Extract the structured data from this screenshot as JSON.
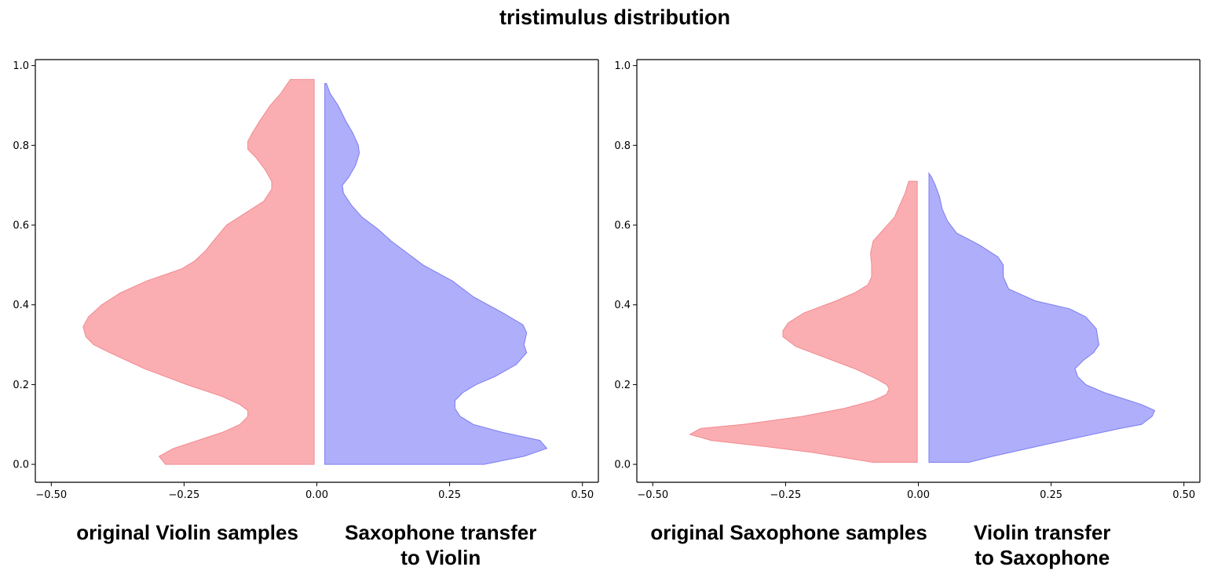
{
  "title": "tristimulus distribution",
  "colors": {
    "left_fill": "#fa8c90",
    "left_edge": "#f08a90",
    "right_fill": "#8c8cfa",
    "right_edge": "#7c7cf0",
    "fill_opacity": 0.7
  },
  "chart_data": [
    {
      "type": "violin",
      "xlim": [
        -0.53,
        0.53
      ],
      "ylim": [
        -0.045,
        1.015
      ],
      "xticks": [
        "−0.50",
        "−0.25",
        "0.00",
        "0.25",
        "0.50"
      ],
      "xtick_values": [
        -0.5,
        -0.25,
        0,
        0.25,
        0.5
      ],
      "yticks": [
        "0.0",
        "0.2",
        "0.4",
        "0.6",
        "0.8",
        "1.0"
      ],
      "ytick_values": [
        0,
        0.2,
        0.4,
        0.6,
        0.8,
        1.0
      ],
      "group_labels": [
        "original Violin samples",
        "Saxophone transfer\nto Violin"
      ],
      "series": [
        {
          "side": "left",
          "x_edge": -0.005,
          "profile": [
            [
              0.0,
              -0.285
            ],
            [
              0.02,
              -0.297
            ],
            [
              0.04,
              -0.27
            ],
            [
              0.08,
              -0.178
            ],
            [
              0.1,
              -0.145
            ],
            [
              0.12,
              -0.13
            ],
            [
              0.135,
              -0.13
            ],
            [
              0.15,
              -0.145
            ],
            [
              0.17,
              -0.178
            ],
            [
              0.2,
              -0.245
            ],
            [
              0.24,
              -0.325
            ],
            [
              0.28,
              -0.39
            ],
            [
              0.3,
              -0.42
            ],
            [
              0.32,
              -0.435
            ],
            [
              0.345,
              -0.44
            ],
            [
              0.37,
              -0.43
            ],
            [
              0.4,
              -0.405
            ],
            [
              0.43,
              -0.37
            ],
            [
              0.46,
              -0.32
            ],
            [
              0.49,
              -0.255
            ],
            [
              0.51,
              -0.23
            ],
            [
              0.535,
              -0.21
            ],
            [
              0.56,
              -0.195
            ],
            [
              0.6,
              -0.17
            ],
            [
              0.63,
              -0.135
            ],
            [
              0.66,
              -0.1
            ],
            [
              0.69,
              -0.085
            ],
            [
              0.71,
              -0.085
            ],
            [
              0.74,
              -0.098
            ],
            [
              0.77,
              -0.115
            ],
            [
              0.79,
              -0.13
            ],
            [
              0.81,
              -0.13
            ],
            [
              0.83,
              -0.122
            ],
            [
              0.86,
              -0.108
            ],
            [
              0.9,
              -0.088
            ],
            [
              0.93,
              -0.068
            ],
            [
              0.965,
              -0.05
            ]
          ]
        },
        {
          "side": "right",
          "x_edge": 0.015,
          "profile": [
            [
              0.0,
              0.315
            ],
            [
              0.02,
              0.39
            ],
            [
              0.04,
              0.433
            ],
            [
              0.06,
              0.42
            ],
            [
              0.08,
              0.35
            ],
            [
              0.1,
              0.295
            ],
            [
              0.12,
              0.27
            ],
            [
              0.14,
              0.26
            ],
            [
              0.16,
              0.26
            ],
            [
              0.18,
              0.275
            ],
            [
              0.2,
              0.3
            ],
            [
              0.22,
              0.335
            ],
            [
              0.25,
              0.375
            ],
            [
              0.28,
              0.395
            ],
            [
              0.3,
              0.39
            ],
            [
              0.33,
              0.395
            ],
            [
              0.35,
              0.388
            ],
            [
              0.38,
              0.35
            ],
            [
              0.42,
              0.295
            ],
            [
              0.46,
              0.255
            ],
            [
              0.5,
              0.2
            ],
            [
              0.53,
              0.17
            ],
            [
              0.56,
              0.14
            ],
            [
              0.59,
              0.115
            ],
            [
              0.62,
              0.085
            ],
            [
              0.65,
              0.065
            ],
            [
              0.68,
              0.05
            ],
            [
              0.7,
              0.048
            ],
            [
              0.72,
              0.06
            ],
            [
              0.75,
              0.073
            ],
            [
              0.78,
              0.08
            ],
            [
              0.8,
              0.078
            ],
            [
              0.83,
              0.068
            ],
            [
              0.86,
              0.055
            ],
            [
              0.9,
              0.04
            ],
            [
              0.93,
              0.025
            ],
            [
              0.955,
              0.018
            ]
          ]
        }
      ]
    },
    {
      "type": "violin",
      "xlim": [
        -0.53,
        0.53
      ],
      "ylim": [
        -0.045,
        1.015
      ],
      "xticks": [
        "−0.50",
        "−0.25",
        "0.00",
        "0.25",
        "0.50"
      ],
      "xtick_values": [
        -0.5,
        -0.25,
        0,
        0.25,
        0.5
      ],
      "yticks": [
        "0.0",
        "0.2",
        "0.4",
        "0.6",
        "0.8",
        "1.0"
      ],
      "ytick_values": [
        0,
        0.2,
        0.4,
        0.6,
        0.8,
        1.0
      ],
      "group_labels": [
        "original Saxophone samples",
        "Violin transfer\nto Saxophone"
      ],
      "series": [
        {
          "side": "left",
          "x_edge": -0.002,
          "profile": [
            [
              0.005,
              -0.085
            ],
            [
              0.03,
              -0.2
            ],
            [
              0.045,
              -0.29
            ],
            [
              0.06,
              -0.39
            ],
            [
              0.075,
              -0.43
            ],
            [
              0.09,
              -0.41
            ],
            [
              0.1,
              -0.33
            ],
            [
              0.12,
              -0.22
            ],
            [
              0.14,
              -0.14
            ],
            [
              0.16,
              -0.085
            ],
            [
              0.175,
              -0.06
            ],
            [
              0.19,
              -0.055
            ],
            [
              0.2,
              -0.06
            ],
            [
              0.215,
              -0.08
            ],
            [
              0.24,
              -0.12
            ],
            [
              0.27,
              -0.18
            ],
            [
              0.295,
              -0.23
            ],
            [
              0.32,
              -0.255
            ],
            [
              0.335,
              -0.255
            ],
            [
              0.355,
              -0.245
            ],
            [
              0.38,
              -0.215
            ],
            [
              0.41,
              -0.155
            ],
            [
              0.43,
              -0.12
            ],
            [
              0.45,
              -0.095
            ],
            [
              0.47,
              -0.088
            ],
            [
              0.5,
              -0.088
            ],
            [
              0.53,
              -0.09
            ],
            [
              0.56,
              -0.085
            ],
            [
              0.59,
              -0.065
            ],
            [
              0.62,
              -0.045
            ],
            [
              0.65,
              -0.035
            ],
            [
              0.68,
              -0.025
            ],
            [
              0.71,
              -0.018
            ]
          ]
        },
        {
          "side": "right",
          "x_edge": 0.02,
          "profile": [
            [
              0.005,
              0.095
            ],
            [
              0.02,
              0.14
            ],
            [
              0.05,
              0.24
            ],
            [
              0.09,
              0.38
            ],
            [
              0.1,
              0.42
            ],
            [
              0.12,
              0.44
            ],
            [
              0.135,
              0.445
            ],
            [
              0.15,
              0.42
            ],
            [
              0.18,
              0.35
            ],
            [
              0.2,
              0.315
            ],
            [
              0.22,
              0.3
            ],
            [
              0.24,
              0.295
            ],
            [
              0.26,
              0.31
            ],
            [
              0.28,
              0.33
            ],
            [
              0.3,
              0.34
            ],
            [
              0.34,
              0.335
            ],
            [
              0.37,
              0.315
            ],
            [
              0.39,
              0.285
            ],
            [
              0.41,
              0.22
            ],
            [
              0.44,
              0.17
            ],
            [
              0.47,
              0.16
            ],
            [
              0.5,
              0.16
            ],
            [
              0.52,
              0.15
            ],
            [
              0.55,
              0.115
            ],
            [
              0.58,
              0.072
            ],
            [
              0.61,
              0.055
            ],
            [
              0.64,
              0.045
            ],
            [
              0.67,
              0.04
            ],
            [
              0.7,
              0.032
            ],
            [
              0.72,
              0.025
            ],
            [
              0.73,
              0.02
            ]
          ]
        }
      ]
    }
  ]
}
